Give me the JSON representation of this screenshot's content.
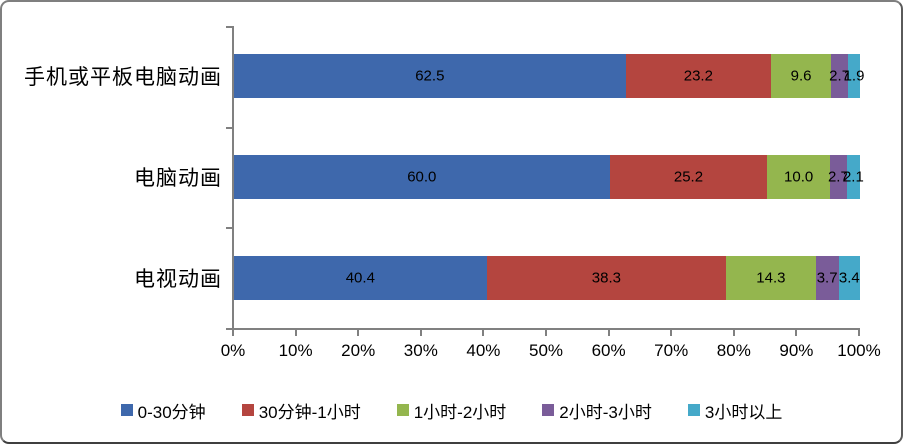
{
  "chart_data": {
    "type": "bar",
    "orientation": "horizontal-stacked",
    "title": "",
    "xlabel": "",
    "ylabel": "",
    "xlim": [
      0,
      100
    ],
    "grid": false,
    "legend_position": "bottom",
    "value_label_decimals": 1,
    "categories": [
      "手机或平板电脑动画",
      "电脑动画",
      "电视动画"
    ],
    "series": [
      {
        "name": "0-30分钟",
        "color": "#3E68AC",
        "values": [
          62.5,
          60.0,
          40.4
        ]
      },
      {
        "name": "30分钟-1小时",
        "color": "#B4453F",
        "values": [
          23.2,
          25.2,
          38.3
        ]
      },
      {
        "name": "1小时-2小时",
        "color": "#94B64E",
        "values": [
          9.6,
          10.0,
          14.3
        ]
      },
      {
        "name": "2小时-3小时",
        "color": "#7A5C99",
        "values": [
          2.7,
          2.7,
          3.7
        ]
      },
      {
        "name": "3小时以上",
        "color": "#45A9C9",
        "values": [
          1.9,
          2.1,
          3.4
        ]
      }
    ],
    "x_ticks": [
      "0%",
      "10%",
      "20%",
      "30%",
      "40%",
      "50%",
      "60%",
      "70%",
      "80%",
      "90%",
      "100%"
    ]
  }
}
